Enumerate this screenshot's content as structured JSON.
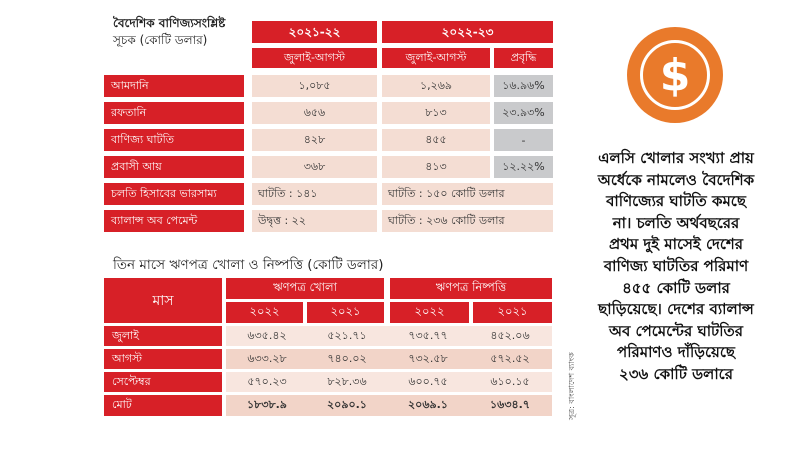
{
  "table1": {
    "title_line1": "বৈদেশিক বাণিজ্যসংশ্লিষ্ট",
    "title_line2": "সূচক (কোটি ডলার)",
    "year1": "২০২১-২২",
    "year2": "২০২২-২৩",
    "sub_period1": "জুলাই-আগস্ট",
    "sub_period2": "জুলাই-আগস্ট",
    "sub_growth": "প্রবৃদ্ধি",
    "rows": [
      {
        "label": "আমদানি",
        "v1": "১,০৮৫",
        "v2": "১,২৬৯",
        "growth": "১৬.৯৬%"
      },
      {
        "label": "রফতানি",
        "v1": "৬৫৬",
        "v2": "৮১৩",
        "growth": "২৩.৯৩%"
      },
      {
        "label": "বাণিজ্য ঘাটতি",
        "v1": "৪২৮",
        "v2": "৪৫৫",
        "growth": "-"
      },
      {
        "label": "প্রবাসী আয়",
        "v1": "৩৬৮",
        "v2": "৪১৩",
        "growth": "১২.২২%"
      },
      {
        "label": "চলতি হিসাবের ভারসাম্য",
        "v1": "ঘাটতি : ১৪১",
        "v2": "ঘাটতি : ১৫০ কোটি ডলার"
      },
      {
        "label": "ব্যালান্স অব পেমেন্ট",
        "v1": "উদ্বৃত্ত : ২২",
        "v2": "ঘাটতি : ২৩৬ কোটি ডলার"
      }
    ]
  },
  "table2": {
    "title": "তিন মাসে ঋণপত্র খোলা ও নিষ্পত্তি (কোটি ডলার)",
    "col_month": "মাস",
    "group_open": "ঋণপত্র খোলা",
    "group_settle": "ঋণপত্র নিষ্পত্তি",
    "years": [
      "২০২২",
      "২০২১",
      "২০২২",
      "২০২১"
    ],
    "rows": [
      {
        "label": "জুলাই",
        "values": [
          "৬৩৫.৪২",
          "৫২১.৭১",
          "৭৩৫.৭৭",
          "৪৫২.০৬"
        ]
      },
      {
        "label": "আগস্ট",
        "values": [
          "৬৩৩.২৮",
          "৭৪০.০২",
          "৭৩২.৫৮",
          "৫৭২.৫২"
        ]
      },
      {
        "label": "সেপ্টেম্বর",
        "values": [
          "৫৭০.২৩",
          "৮২৮.৩৬",
          "৬০০.৭৫",
          "৬১০.১৫"
        ]
      },
      {
        "label": "মোট",
        "values": [
          "১৮৩৮.৯",
          "২০৯০.১",
          "২০৬৯.১",
          "১৬৩৪.৭"
        ]
      }
    ],
    "source": "সূত্র: বাংলাদেশ ব্যাংক"
  },
  "coin": {
    "symbol": "$",
    "icon": "dollar-coin-icon",
    "color": "#e97a2b"
  },
  "summary_lines": [
    "এলসি খোলার সংখ্যা প্রায়",
    "অর্ধেকে নামলেও বৈদেশিক",
    "বাণিজ্যের ঘাটতি কমছে",
    "না। চলতি অর্থবছরের",
    "প্রথম দুই মাসেই দেশের",
    "বাণিজ্য ঘাটতির পরিমাণ",
    "৪৫৫ কোটি ডলার",
    "ছাড়িয়েছে। দেশের ব্যালান্স",
    "অব পেমেন্টের ঘাটতির",
    "পরিমাণও দাঁড়িয়েছে",
    "২৩৬ কোটি ডলারে"
  ],
  "colors": {
    "accent_red": "#d72027",
    "cell_fill": "#f4ddd3",
    "growth_fill": "#c9cacc"
  }
}
